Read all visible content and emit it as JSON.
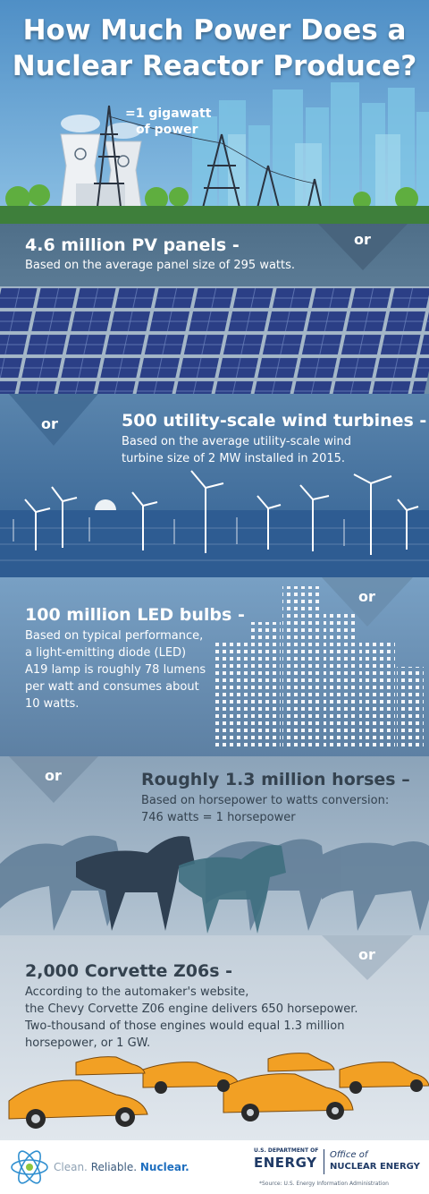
{
  "title": {
    "line1": "How Much Power Does a",
    "line2": "Nuclear Reactor Produce?"
  },
  "hero": {
    "gigawatt_line1": "=1 gigawatt",
    "gigawatt_line2": "of power"
  },
  "or_label": "or",
  "sections": [
    {
      "heading": "4.6 million PV panels -",
      "lines": [
        "Based on the average panel size of 295 watts."
      ]
    },
    {
      "heading": "500 utility-scale wind turbines -",
      "lines": [
        "Based on the average utility-scale wind",
        "turbine size of 2 MW installed in 2015."
      ]
    },
    {
      "heading": "100 million LED bulbs -",
      "lines": [
        "Based on typical performance,",
        "a light-emitting diode (LED)",
        "A19 lamp is roughly 78 lumens",
        "per watt and consumes about",
        "10 watts."
      ]
    },
    {
      "heading": "Roughly 1.3 million horses –",
      "lines": [
        "Based on horsepower to watts conversion:",
        "746 watts = 1 horsepower"
      ]
    },
    {
      "heading": "2,000 Corvette Z06s -",
      "lines": [
        "According to the automaker's website,",
        "the Chevy Corvette Z06 engine delivers 650 horsepower.",
        "Two-thousand of those engines would equal 1.3 million",
        "horsepower, or 1 GW."
      ]
    }
  ],
  "footer": {
    "tagline_clean": "Clean.",
    "tagline_reliable": "Reliable.",
    "tagline_nuclear": "Nuclear.",
    "doe_small": "U.S. DEPARTMENT OF",
    "doe_big": "ENERGY",
    "office_line1": "Office of",
    "office_line2": "NUCLEAR ENERGY",
    "source": "*Source: U.S. Energy Information Administration"
  },
  "colors": {
    "sky": "#5e9dcf",
    "pv_band": "#5b7d99",
    "wind_band": "#4a7aa8",
    "led_band": "#6d8aa6",
    "horse_band": "#9fb2c3",
    "car_band": "#d4dce4",
    "accent_orange": "#f2a024",
    "doe_navy": "#1f3a66"
  }
}
